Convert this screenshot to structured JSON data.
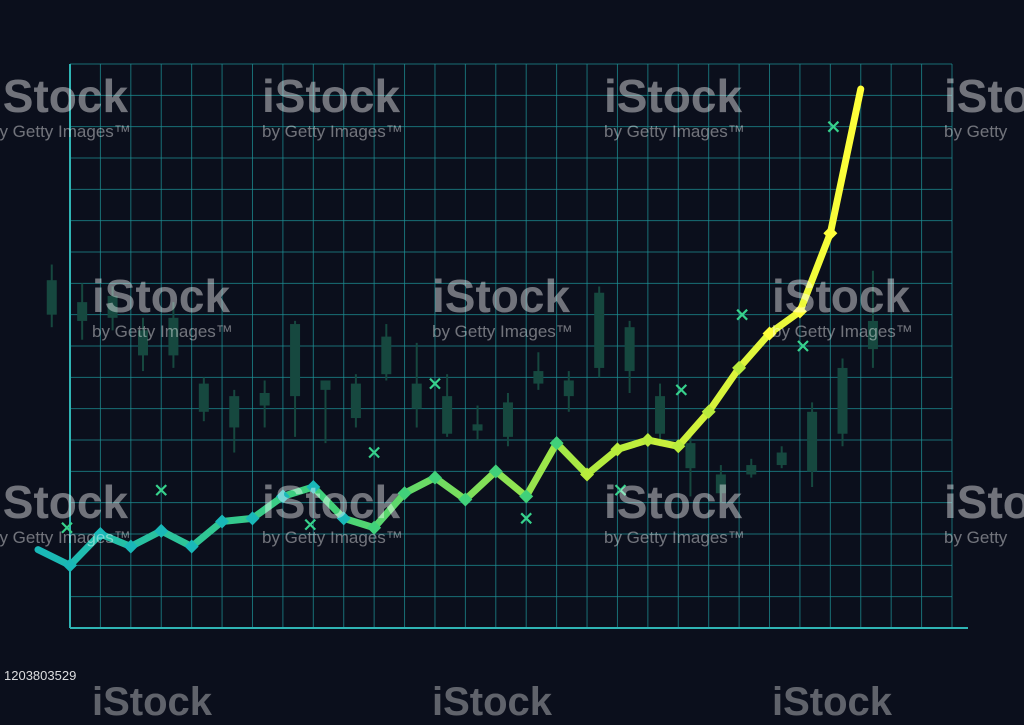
{
  "chart_data": {
    "type": "line",
    "x_range": [
      0,
      29
    ],
    "y_range": [
      0,
      18
    ],
    "grid": true,
    "line_gradient": [
      "#19b8b8",
      "#41d17a",
      "#b9ec3c",
      "#ffff3a"
    ],
    "line": [
      {
        "x": -1.0,
        "y": 2.5
      },
      {
        "x": 0.0,
        "y": 2.0
      },
      {
        "x": 1.0,
        "y": 3.0
      },
      {
        "x": 2.0,
        "y": 2.6
      },
      {
        "x": 3.0,
        "y": 3.1
      },
      {
        "x": 4.0,
        "y": 2.6
      },
      {
        "x": 5.0,
        "y": 3.4
      },
      {
        "x": 6.0,
        "y": 3.5
      },
      {
        "x": 7.0,
        "y": 4.2
      },
      {
        "x": 8.0,
        "y": 4.5
      },
      {
        "x": 9.0,
        "y": 3.5
      },
      {
        "x": 10.0,
        "y": 3.2
      },
      {
        "x": 11.0,
        "y": 4.3
      },
      {
        "x": 12.0,
        "y": 4.8
      },
      {
        "x": 13.0,
        "y": 4.1
      },
      {
        "x": 14.0,
        "y": 5.0
      },
      {
        "x": 15.0,
        "y": 4.2
      },
      {
        "x": 16.0,
        "y": 5.9
      },
      {
        "x": 17.0,
        "y": 4.9
      },
      {
        "x": 18.0,
        "y": 5.7
      },
      {
        "x": 19.0,
        "y": 6.0
      },
      {
        "x": 20.0,
        "y": 5.8
      },
      {
        "x": 21.0,
        "y": 6.9
      },
      {
        "x": 22.0,
        "y": 8.3
      },
      {
        "x": 23.0,
        "y": 9.4
      },
      {
        "x": 24.0,
        "y": 10.1
      },
      {
        "x": 25.0,
        "y": 12.6
      },
      {
        "x": 26.0,
        "y": 17.2
      }
    ],
    "markers_x": [
      -0.1,
      3.0,
      7.9,
      10.0,
      12.0,
      15.0,
      18.1,
      20.1,
      22.1,
      24.1,
      25.1
    ],
    "markers_y": [
      3.2,
      4.4,
      3.3,
      5.6,
      7.8,
      3.5,
      4.4,
      7.6,
      10.0,
      9.0,
      16.0
    ],
    "candles": [
      {
        "x": -0.6,
        "o": 10.0,
        "c": 11.1,
        "h": 11.6,
        "l": 9.6
      },
      {
        "x": 0.4,
        "o": 9.8,
        "c": 10.4,
        "h": 11.0,
        "l": 9.2
      },
      {
        "x": 1.4,
        "o": 9.9,
        "c": 10.6,
        "h": 10.9,
        "l": 9.5
      },
      {
        "x": 2.4,
        "o": 8.7,
        "c": 9.5,
        "h": 9.9,
        "l": 8.2
      },
      {
        "x": 3.4,
        "o": 8.7,
        "c": 9.9,
        "h": 10.4,
        "l": 8.3
      },
      {
        "x": 4.4,
        "o": 6.9,
        "c": 7.8,
        "h": 8.0,
        "l": 6.6
      },
      {
        "x": 5.4,
        "o": 6.4,
        "c": 7.4,
        "h": 7.6,
        "l": 5.6
      },
      {
        "x": 6.4,
        "o": 7.1,
        "c": 7.5,
        "h": 7.9,
        "l": 6.4
      },
      {
        "x": 7.4,
        "o": 7.4,
        "c": 9.7,
        "h": 9.8,
        "l": 6.1
      },
      {
        "x": 8.4,
        "o": 7.6,
        "c": 7.9,
        "h": 7.9,
        "l": 5.9
      },
      {
        "x": 9.4,
        "o": 6.7,
        "c": 7.8,
        "h": 8.1,
        "l": 6.4
      },
      {
        "x": 10.4,
        "o": 8.1,
        "c": 9.3,
        "h": 9.7,
        "l": 7.9
      },
      {
        "x": 11.4,
        "o": 7.0,
        "c": 7.8,
        "h": 9.1,
        "l": 6.4
      },
      {
        "x": 12.4,
        "o": 6.2,
        "c": 7.4,
        "h": 8.1,
        "l": 6.1
      },
      {
        "x": 13.4,
        "o": 6.3,
        "c": 6.5,
        "h": 7.1,
        "l": 6.0
      },
      {
        "x": 14.4,
        "o": 6.1,
        "c": 7.2,
        "h": 7.5,
        "l": 5.8
      },
      {
        "x": 15.4,
        "o": 7.8,
        "c": 8.2,
        "h": 8.8,
        "l": 7.6
      },
      {
        "x": 16.4,
        "o": 7.4,
        "c": 7.9,
        "h": 8.2,
        "l": 6.9
      },
      {
        "x": 17.4,
        "o": 8.3,
        "c": 10.7,
        "h": 10.9,
        "l": 8.0
      },
      {
        "x": 18.4,
        "o": 8.2,
        "c": 9.6,
        "h": 9.8,
        "l": 7.5
      },
      {
        "x": 19.4,
        "o": 6.2,
        "c": 7.4,
        "h": 7.8,
        "l": 5.8
      },
      {
        "x": 20.4,
        "o": 5.1,
        "c": 5.9,
        "h": 6.2,
        "l": 4.2
      },
      {
        "x": 21.4,
        "o": 4.3,
        "c": 4.9,
        "h": 5.2,
        "l": 4.0
      },
      {
        "x": 22.4,
        "o": 4.9,
        "c": 5.2,
        "h": 5.4,
        "l": 4.8
      },
      {
        "x": 23.4,
        "o": 5.2,
        "c": 5.6,
        "h": 5.8,
        "l": 5.1
      },
      {
        "x": 24.4,
        "o": 5.0,
        "c": 6.9,
        "h": 7.2,
        "l": 4.5
      },
      {
        "x": 25.4,
        "o": 6.2,
        "c": 8.3,
        "h": 8.6,
        "l": 5.8
      },
      {
        "x": 26.4,
        "o": 8.9,
        "c": 9.8,
        "h": 11.4,
        "l": 8.3
      }
    ]
  },
  "watermark": {
    "brand": "iStock",
    "main": "iStock",
    "sub": "by Getty Images",
    "tm": "™",
    "sub_partial": "by Getty"
  },
  "stock_id": "1203803529",
  "colors": {
    "background": "#0b0f1c",
    "grid": "#1d8f93",
    "axis": "#2fb4b4",
    "marker": "#37d28c",
    "candle": "#16483f"
  }
}
